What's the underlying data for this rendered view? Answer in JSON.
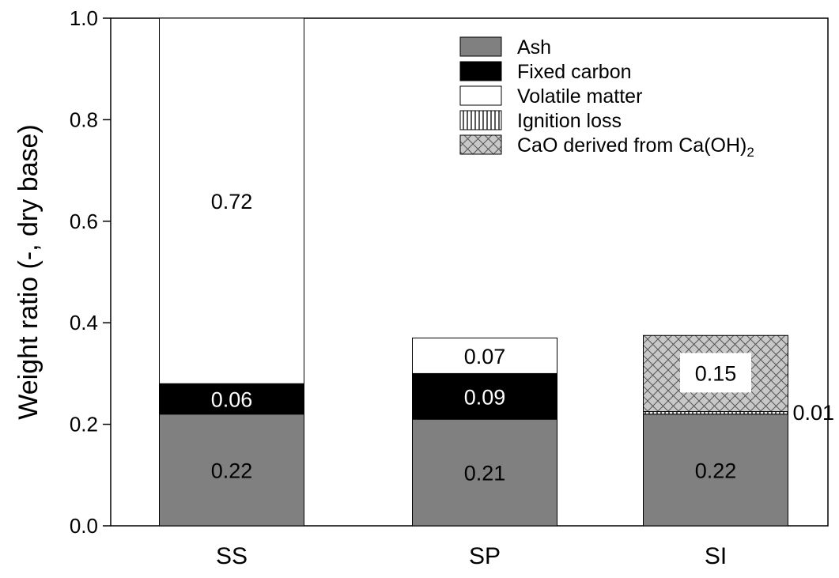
{
  "chart_data": {
    "type": "bar",
    "stacked": true,
    "categories": [
      "SS",
      "SP",
      "SI"
    ],
    "ylabel": "Weight ratio (-, dry base)",
    "ylim": [
      0,
      1.0
    ],
    "yticks": [
      "0.0",
      "0.2",
      "0.4",
      "0.6",
      "0.8",
      "1.0"
    ],
    "legend_position": "top-right",
    "series": [
      {
        "name": "Ash",
        "values": [
          0.22,
          0.21,
          0.22
        ],
        "labels": [
          "0.22",
          "0.21",
          "0.22"
        ],
        "fill": "gray"
      },
      {
        "name": "Fixed carbon",
        "values": [
          0.06,
          0.09,
          0
        ],
        "labels": [
          "0.06",
          "0.09",
          ""
        ],
        "fill": "black"
      },
      {
        "name": "Volatile matter",
        "values": [
          0.72,
          0.07,
          0
        ],
        "labels": [
          "0.72",
          "0.07",
          ""
        ],
        "fill": "white"
      },
      {
        "name": "Ignition loss",
        "values": [
          0,
          0,
          0.005
        ],
        "labels": [
          "",
          "",
          "0.01"
        ],
        "fill": "vertical-lines"
      },
      {
        "name": "CaO derived from Ca(OH)",
        "name_subscript": "2",
        "values": [
          0,
          0,
          0.15
        ],
        "labels": [
          "",
          "",
          "0.15"
        ],
        "fill": "crosshatch"
      }
    ],
    "colors": {
      "ash": "#808080",
      "fixed_carbon": "#000000",
      "volatile": "#ffffff",
      "hatch_bg": "#c8c8c8"
    }
  }
}
